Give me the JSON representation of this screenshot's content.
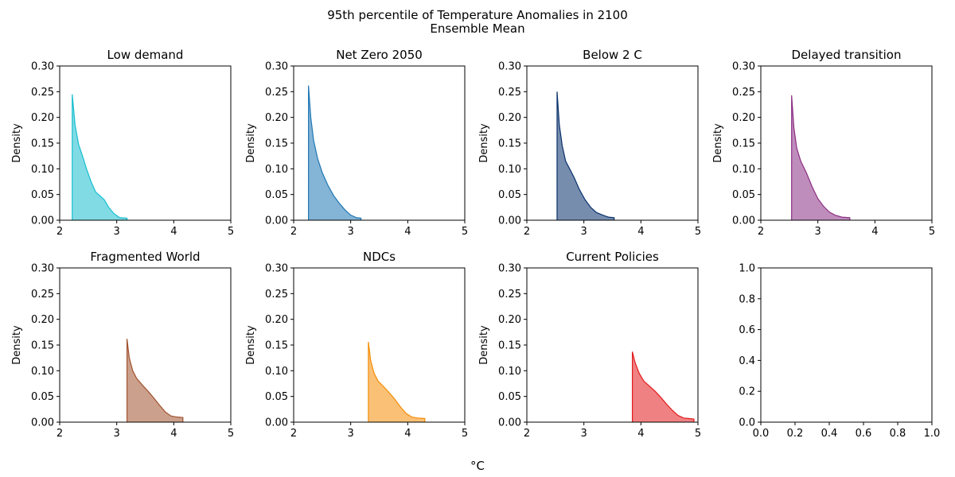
{
  "figure": {
    "title_line1": "95th percentile of Temperature Anomalies in 2100",
    "title_line2": "Ensemble Mean",
    "xlabel": "°C"
  },
  "chart_data": [
    {
      "type": "area",
      "title": "Low demand",
      "ylabel": "Density",
      "xlim": [
        2,
        5
      ],
      "ylim": [
        0,
        0.3
      ],
      "xticks": [
        "2",
        "3",
        "4",
        "5"
      ],
      "yticks": [
        "0.00",
        "0.05",
        "0.10",
        "0.15",
        "0.20",
        "0.25",
        "0.30"
      ],
      "color": "#17becf",
      "x": [
        2.22,
        2.27,
        2.33,
        2.4,
        2.47,
        2.55,
        2.63,
        2.7,
        2.78,
        2.86,
        2.95,
        3.05,
        3.18
      ],
      "y": [
        0.245,
        0.185,
        0.148,
        0.125,
        0.1,
        0.075,
        0.055,
        0.048,
        0.04,
        0.025,
        0.013,
        0.005,
        0.004
      ]
    },
    {
      "type": "area",
      "title": "Net Zero 2050",
      "ylabel": "Density",
      "xlim": [
        2,
        5
      ],
      "ylim": [
        0,
        0.3
      ],
      "xticks": [
        "2",
        "3",
        "4",
        "5"
      ],
      "yticks": [
        "0.00",
        "0.05",
        "0.10",
        "0.15",
        "0.20",
        "0.25",
        "0.30"
      ],
      "color": "#1f77b4",
      "x": [
        2.26,
        2.3,
        2.35,
        2.42,
        2.5,
        2.6,
        2.7,
        2.8,
        2.9,
        3.0,
        3.1,
        3.18
      ],
      "y": [
        0.262,
        0.2,
        0.155,
        0.12,
        0.093,
        0.068,
        0.048,
        0.033,
        0.02,
        0.01,
        0.005,
        0.004
      ]
    },
    {
      "type": "area",
      "title": "Below 2 C",
      "ylabel": "Density",
      "xlim": [
        2,
        5
      ],
      "ylim": [
        0,
        0.3
      ],
      "xticks": [
        "2",
        "3",
        "4",
        "5"
      ],
      "yticks": [
        "0.00",
        "0.05",
        "0.10",
        "0.15",
        "0.20",
        "0.25",
        "0.30"
      ],
      "color": "#08306b",
      "x": [
        2.53,
        2.57,
        2.62,
        2.68,
        2.75,
        2.83,
        2.92,
        3.02,
        3.12,
        3.22,
        3.33,
        3.43,
        3.53
      ],
      "y": [
        0.25,
        0.185,
        0.145,
        0.115,
        0.1,
        0.083,
        0.06,
        0.04,
        0.025,
        0.015,
        0.01,
        0.006,
        0.005
      ]
    },
    {
      "type": "area",
      "title": "Delayed transition",
      "ylabel": "Density",
      "xlim": [
        2,
        5
      ],
      "ylim": [
        0,
        0.3
      ],
      "xticks": [
        "2",
        "3",
        "4",
        "5"
      ],
      "yticks": [
        "0.00",
        "0.05",
        "0.10",
        "0.15",
        "0.20",
        "0.25",
        "0.30"
      ],
      "color": "#8b2f83",
      "x": [
        2.54,
        2.58,
        2.63,
        2.7,
        2.8,
        2.9,
        3.0,
        3.1,
        3.2,
        3.3,
        3.42,
        3.56
      ],
      "y": [
        0.243,
        0.18,
        0.14,
        0.115,
        0.092,
        0.065,
        0.042,
        0.027,
        0.016,
        0.01,
        0.006,
        0.005
      ]
    },
    {
      "type": "area",
      "title": "Fragmented World",
      "ylabel": "Density",
      "xlim": [
        2,
        5
      ],
      "ylim": [
        0,
        0.3
      ],
      "xticks": [
        "2",
        "3",
        "4",
        "5"
      ],
      "yticks": [
        "0.00",
        "0.05",
        "0.10",
        "0.15",
        "0.20",
        "0.25",
        "0.30"
      ],
      "color": "#a0522d",
      "x": [
        3.18,
        3.22,
        3.28,
        3.35,
        3.45,
        3.55,
        3.65,
        3.75,
        3.85,
        3.95,
        4.05,
        4.16
      ],
      "y": [
        0.162,
        0.125,
        0.1,
        0.085,
        0.072,
        0.06,
        0.047,
        0.033,
        0.02,
        0.012,
        0.01,
        0.009
      ]
    },
    {
      "type": "area",
      "title": "NDCs",
      "ylabel": "Density",
      "xlim": [
        2,
        5
      ],
      "ylim": [
        0,
        0.3
      ],
      "xticks": [
        "2",
        "3",
        "4",
        "5"
      ],
      "yticks": [
        "0.00",
        "0.05",
        "0.10",
        "0.15",
        "0.20",
        "0.25",
        "0.30"
      ],
      "color": "#f48c06",
      "x": [
        3.31,
        3.35,
        3.41,
        3.48,
        3.57,
        3.67,
        3.77,
        3.87,
        3.97,
        4.07,
        4.18,
        4.3
      ],
      "y": [
        0.156,
        0.12,
        0.095,
        0.08,
        0.07,
        0.058,
        0.045,
        0.03,
        0.017,
        0.01,
        0.008,
        0.007
      ]
    },
    {
      "type": "area",
      "title": "Current Policies",
      "ylabel": "Density",
      "xlim": [
        2,
        5
      ],
      "ylim": [
        0,
        0.3
      ],
      "xticks": [
        "2",
        "3",
        "4",
        "5"
      ],
      "yticks": [
        "0.00",
        "0.05",
        "0.10",
        "0.15",
        "0.20",
        "0.25",
        "0.30"
      ],
      "color": "#e31a1c",
      "x": [
        3.85,
        3.9,
        3.97,
        4.05,
        4.15,
        4.25,
        4.35,
        4.45,
        4.55,
        4.65,
        4.75,
        4.85,
        4.93
      ],
      "y": [
        0.137,
        0.115,
        0.095,
        0.08,
        0.07,
        0.06,
        0.048,
        0.035,
        0.023,
        0.013,
        0.008,
        0.007,
        0.006
      ]
    },
    {
      "type": "empty",
      "title": "",
      "ylabel": "",
      "xlim": [
        0,
        1
      ],
      "ylim": [
        0,
        1
      ],
      "xticks": [
        "0.0",
        "0.2",
        "0.4",
        "0.6",
        "0.8",
        "1.0"
      ],
      "yticks": [
        "0.0",
        "0.2",
        "0.4",
        "0.6",
        "0.8",
        "1.0"
      ],
      "color": "#000000",
      "x": [],
      "y": []
    }
  ]
}
